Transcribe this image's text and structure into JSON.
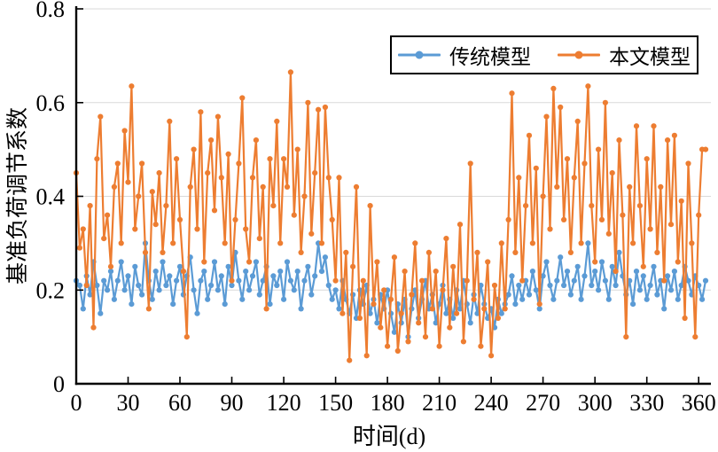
{
  "figure": {
    "background": "#ffffff",
    "axis_color": "#000000",
    "gridline_color": "#d9d9d9"
  },
  "legend": {
    "position": "top-right-inside",
    "border_color": "#000000",
    "entries": [
      {
        "id": "traditional",
        "label": "传统模型",
        "color": "#5b9bd5"
      },
      {
        "id": "proposed",
        "label": "本文模型",
        "color": "#ed7d31"
      }
    ]
  },
  "chart_data": {
    "type": "line",
    "title": "",
    "xlabel": "时间(d)",
    "ylabel": "基准负荷调节系数",
    "xlim": [
      0,
      364
    ],
    "ylim": [
      0,
      0.8
    ],
    "x_ticks": [
      0,
      30,
      60,
      90,
      120,
      150,
      180,
      210,
      240,
      270,
      300,
      330,
      360
    ],
    "y_ticks": [
      0,
      0.2,
      0.4,
      0.6,
      0.8
    ],
    "y_tick_labels": [
      "0",
      "0.2",
      "0.4",
      "0.6",
      "0.8"
    ],
    "grid": "horizontal",
    "legend_position": "top-right-inside",
    "marker": "circle",
    "x": [
      0,
      2,
      4,
      6,
      8,
      10,
      12,
      14,
      16,
      18,
      20,
      22,
      24,
      26,
      28,
      30,
      32,
      34,
      36,
      38,
      40,
      42,
      44,
      46,
      48,
      50,
      52,
      54,
      56,
      58,
      60,
      62,
      64,
      66,
      68,
      70,
      72,
      74,
      76,
      78,
      80,
      82,
      84,
      86,
      88,
      90,
      92,
      94,
      96,
      98,
      100,
      102,
      104,
      106,
      108,
      110,
      112,
      114,
      116,
      118,
      120,
      122,
      124,
      126,
      128,
      130,
      132,
      134,
      136,
      138,
      140,
      142,
      144,
      146,
      148,
      150,
      152,
      154,
      156,
      158,
      160,
      162,
      164,
      166,
      168,
      170,
      172,
      174,
      176,
      178,
      180,
      182,
      184,
      186,
      188,
      190,
      192,
      194,
      196,
      198,
      200,
      202,
      204,
      206,
      208,
      210,
      212,
      214,
      216,
      218,
      220,
      222,
      224,
      226,
      228,
      230,
      232,
      234,
      236,
      238,
      240,
      242,
      244,
      246,
      248,
      250,
      252,
      254,
      256,
      258,
      260,
      262,
      264,
      266,
      268,
      270,
      272,
      274,
      276,
      278,
      280,
      282,
      284,
      286,
      288,
      290,
      292,
      294,
      296,
      298,
      300,
      302,
      304,
      306,
      308,
      310,
      312,
      314,
      316,
      318,
      320,
      322,
      324,
      326,
      328,
      330,
      332,
      334,
      336,
      338,
      340,
      342,
      344,
      346,
      348,
      350,
      352,
      354,
      356,
      358,
      360,
      362,
      364
    ],
    "series": [
      {
        "id": "traditional",
        "name": "传统模型",
        "color": "#5b9bd5",
        "values": [
          0.22,
          0.21,
          0.16,
          0.23,
          0.19,
          0.26,
          0.21,
          0.15,
          0.22,
          0.2,
          0.24,
          0.18,
          0.22,
          0.26,
          0.2,
          0.23,
          0.17,
          0.25,
          0.21,
          0.19,
          0.3,
          0.22,
          0.18,
          0.24,
          0.2,
          0.26,
          0.21,
          0.23,
          0.17,
          0.22,
          0.25,
          0.19,
          0.23,
          0.27,
          0.2,
          0.15,
          0.22,
          0.24,
          0.18,
          0.21,
          0.26,
          0.2,
          0.23,
          0.17,
          0.25,
          0.21,
          0.28,
          0.22,
          0.18,
          0.24,
          0.2,
          0.23,
          0.26,
          0.19,
          0.22,
          0.25,
          0.17,
          0.23,
          0.21,
          0.24,
          0.18,
          0.26,
          0.22,
          0.2,
          0.24,
          0.16,
          0.22,
          0.25,
          0.19,
          0.23,
          0.3,
          0.24,
          0.27,
          0.21,
          0.18,
          0.2,
          0.16,
          0.22,
          0.18,
          0.15,
          0.19,
          0.14,
          0.2,
          0.17,
          0.21,
          0.15,
          0.18,
          0.13,
          0.19,
          0.16,
          0.2,
          0.15,
          0.11,
          0.17,
          0.13,
          0.18,
          0.1,
          0.16,
          0.2,
          0.14,
          0.18,
          0.22,
          0.16,
          0.19,
          0.13,
          0.17,
          0.21,
          0.15,
          0.18,
          0.14,
          0.2,
          0.16,
          0.22,
          0.17,
          0.13,
          0.19,
          0.15,
          0.21,
          0.17,
          0.14,
          0.16,
          0.12,
          0.18,
          0.15,
          0.17,
          0.19,
          0.23,
          0.17,
          0.21,
          0.18,
          0.22,
          0.19,
          0.24,
          0.2,
          0.16,
          0.23,
          0.26,
          0.21,
          0.18,
          0.22,
          0.27,
          0.21,
          0.24,
          0.19,
          0.22,
          0.25,
          0.18,
          0.23,
          0.3,
          0.21,
          0.24,
          0.2,
          0.26,
          0.22,
          0.18,
          0.25,
          0.21,
          0.28,
          0.23,
          0.19,
          0.22,
          0.17,
          0.24,
          0.2,
          0.23,
          0.18,
          0.21,
          0.25,
          0.19,
          0.22,
          0.16,
          0.23,
          0.2,
          0.24,
          0.18,
          0.21,
          0.25,
          0.22,
          0.19,
          0.23,
          0.21,
          0.18,
          0.22
        ]
      },
      {
        "id": "proposed",
        "name": "本文模型",
        "color": "#ed7d31",
        "values": [
          0.45,
          0.29,
          0.33,
          0.21,
          0.38,
          0.12,
          0.48,
          0.57,
          0.31,
          0.36,
          0.25,
          0.42,
          0.47,
          0.3,
          0.54,
          0.43,
          0.635,
          0.33,
          0.4,
          0.47,
          0.28,
          0.16,
          0.41,
          0.34,
          0.45,
          0.28,
          0.38,
          0.56,
          0.3,
          0.48,
          0.35,
          0.24,
          0.1,
          0.42,
          0.5,
          0.33,
          0.58,
          0.26,
          0.45,
          0.52,
          0.37,
          0.57,
          0.44,
          0.3,
          0.49,
          0.22,
          0.35,
          0.47,
          0.61,
          0.33,
          0.26,
          0.44,
          0.52,
          0.31,
          0.42,
          0.16,
          0.48,
          0.38,
          0.56,
          0.3,
          0.48,
          0.42,
          0.665,
          0.36,
          0.5,
          0.28,
          0.4,
          0.6,
          0.32,
          0.45,
          0.585,
          0.3,
          0.59,
          0.44,
          0.35,
          0.22,
          0.44,
          0.15,
          0.28,
          0.05,
          0.25,
          0.42,
          0.14,
          0.22,
          0.06,
          0.38,
          0.17,
          0.26,
          0.12,
          0.2,
          0.08,
          0.18,
          0.27,
          0.07,
          0.15,
          0.24,
          0.09,
          0.19,
          0.3,
          0.13,
          0.22,
          0.1,
          0.28,
          0.16,
          0.24,
          0.08,
          0.2,
          0.31,
          0.12,
          0.25,
          0.15,
          0.34,
          0.09,
          0.22,
          0.47,
          0.18,
          0.28,
          0.08,
          0.16,
          0.26,
          0.06,
          0.21,
          0.14,
          0.3,
          0.16,
          0.35,
          0.62,
          0.28,
          0.44,
          0.22,
          0.38,
          0.53,
          0.3,
          0.46,
          0.17,
          0.4,
          0.57,
          0.33,
          0.63,
          0.42,
          0.59,
          0.35,
          0.48,
          0.28,
          0.44,
          0.56,
          0.3,
          0.47,
          0.635,
          0.38,
          0.26,
          0.5,
          0.35,
          0.6,
          0.32,
          0.45,
          0.24,
          0.52,
          0.36,
          0.1,
          0.42,
          0.3,
          0.55,
          0.38,
          0.25,
          0.48,
          0.33,
          0.55,
          0.28,
          0.42,
          0.22,
          0.52,
          0.34,
          0.53,
          0.26,
          0.39,
          0.14,
          0.47,
          0.3,
          0.1,
          0.36,
          0.5,
          0.5
        ]
      }
    ]
  }
}
